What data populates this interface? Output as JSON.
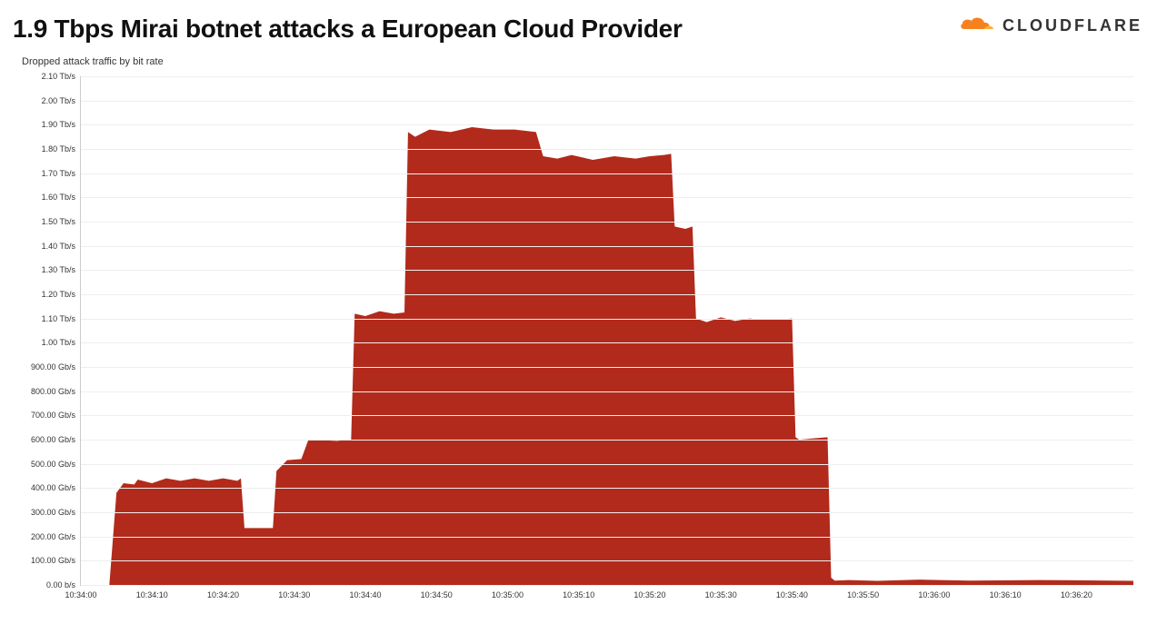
{
  "header": {
    "title": "1.9 Tbps Mirai botnet attacks a European Cloud Provider",
    "logo_word": "CLOUDFLARE",
    "logo_color": "#f6821f"
  },
  "chart": {
    "type": "area",
    "subtitle": "Dropped attack traffic by bit rate",
    "background_color": "#ffffff",
    "grid_color": "#eeeeee",
    "axis_color": "#cccccc",
    "text_color": "#333333",
    "subtitle_fontsize": 11,
    "tick_fontsize": 9,
    "title_fontsize": 28,
    "title_fontweight": 800,
    "series": [
      {
        "name": "primary",
        "fill_color": "#b22a1b",
        "stroke_color": "#8f1f14",
        "stroke_width": 0,
        "fill_opacity": 1.0,
        "points": [
          {
            "x": 0,
            "y": 0
          },
          {
            "x": 4,
            "y": 0
          },
          {
            "x": 5,
            "y": 380
          },
          {
            "x": 6,
            "y": 420
          },
          {
            "x": 7.5,
            "y": 415
          },
          {
            "x": 8,
            "y": 435
          },
          {
            "x": 10,
            "y": 420
          },
          {
            "x": 12,
            "y": 440
          },
          {
            "x": 14,
            "y": 430
          },
          {
            "x": 16,
            "y": 440
          },
          {
            "x": 18,
            "y": 430
          },
          {
            "x": 20,
            "y": 440
          },
          {
            "x": 22,
            "y": 430
          },
          {
            "x": 22.5,
            "y": 440
          },
          {
            "x": 23,
            "y": 235
          },
          {
            "x": 27,
            "y": 235
          },
          {
            "x": 27.5,
            "y": 470
          },
          {
            "x": 29,
            "y": 515
          },
          {
            "x": 31,
            "y": 520
          },
          {
            "x": 32,
            "y": 600
          },
          {
            "x": 36,
            "y": 595
          },
          {
            "x": 38,
            "y": 600
          },
          {
            "x": 38.5,
            "y": 1120
          },
          {
            "x": 40,
            "y": 1110
          },
          {
            "x": 42,
            "y": 1130
          },
          {
            "x": 44,
            "y": 1120
          },
          {
            "x": 45.5,
            "y": 1125
          },
          {
            "x": 46,
            "y": 1870
          },
          {
            "x": 47,
            "y": 1850
          },
          {
            "x": 49,
            "y": 1880
          },
          {
            "x": 52,
            "y": 1870
          },
          {
            "x": 55,
            "y": 1890
          },
          {
            "x": 58,
            "y": 1880
          },
          {
            "x": 61,
            "y": 1880
          },
          {
            "x": 64,
            "y": 1870
          },
          {
            "x": 65,
            "y": 1770
          },
          {
            "x": 67,
            "y": 1760
          },
          {
            "x": 69,
            "y": 1775
          },
          {
            "x": 72,
            "y": 1755
          },
          {
            "x": 75,
            "y": 1770
          },
          {
            "x": 78,
            "y": 1760
          },
          {
            "x": 80,
            "y": 1770
          },
          {
            "x": 82,
            "y": 1775
          },
          {
            "x": 83,
            "y": 1780
          },
          {
            "x": 83.5,
            "y": 1480
          },
          {
            "x": 85,
            "y": 1470
          },
          {
            "x": 86,
            "y": 1480
          },
          {
            "x": 86.5,
            "y": 1100
          },
          {
            "x": 88,
            "y": 1085
          },
          {
            "x": 90,
            "y": 1105
          },
          {
            "x": 92,
            "y": 1090
          },
          {
            "x": 94,
            "y": 1100
          },
          {
            "x": 96,
            "y": 1095
          },
          {
            "x": 98,
            "y": 1095
          },
          {
            "x": 100,
            "y": 1100
          },
          {
            "x": 100.5,
            "y": 610
          },
          {
            "x": 101,
            "y": 600
          },
          {
            "x": 103,
            "y": 605
          },
          {
            "x": 105,
            "y": 610
          },
          {
            "x": 105.5,
            "y": 30
          },
          {
            "x": 106,
            "y": 18
          },
          {
            "x": 108,
            "y": 20
          },
          {
            "x": 112,
            "y": 17
          },
          {
            "x": 118,
            "y": 22
          },
          {
            "x": 125,
            "y": 18
          },
          {
            "x": 135,
            "y": 20
          },
          {
            "x": 140,
            "y": 19
          },
          {
            "x": 148,
            "y": 17
          }
        ]
      },
      {
        "name": "secondary",
        "fill_color": "#f6b21b",
        "stroke_color": "#d59400",
        "stroke_width": 0,
        "fill_opacity": 1.0,
        "points": [
          {
            "x": 105,
            "y": 0
          },
          {
            "x": 106,
            "y": 8
          },
          {
            "x": 110,
            "y": 10
          },
          {
            "x": 116,
            "y": 9
          },
          {
            "x": 122,
            "y": 12
          },
          {
            "x": 130,
            "y": 8
          },
          {
            "x": 138,
            "y": 10
          },
          {
            "x": 148,
            "y": 8
          }
        ]
      }
    ],
    "y_axis": {
      "min": 0,
      "max": 2100,
      "ticks": [
        {
          "value": 0,
          "label": "0.00 b/s"
        },
        {
          "value": 100,
          "label": "100.00 Gb/s"
        },
        {
          "value": 200,
          "label": "200.00 Gb/s"
        },
        {
          "value": 300,
          "label": "300.00 Gb/s"
        },
        {
          "value": 400,
          "label": "400.00 Gb/s"
        },
        {
          "value": 500,
          "label": "500.00 Gb/s"
        },
        {
          "value": 600,
          "label": "600.00 Gb/s"
        },
        {
          "value": 700,
          "label": "700.00 Gb/s"
        },
        {
          "value": 800,
          "label": "800.00 Gb/s"
        },
        {
          "value": 900,
          "label": "900.00 Gb/s"
        },
        {
          "value": 1000,
          "label": "1.00 Tb/s"
        },
        {
          "value": 1100,
          "label": "1.10 Tb/s"
        },
        {
          "value": 1200,
          "label": "1.20 Tb/s"
        },
        {
          "value": 1300,
          "label": "1.30 Tb/s"
        },
        {
          "value": 1400,
          "label": "1.40 Tb/s"
        },
        {
          "value": 1500,
          "label": "1.50 Tb/s"
        },
        {
          "value": 1600,
          "label": "1.60 Tb/s"
        },
        {
          "value": 1700,
          "label": "1.70 Tb/s"
        },
        {
          "value": 1800,
          "label": "1.80 Tb/s"
        },
        {
          "value": 1900,
          "label": "1.90 Tb/s"
        },
        {
          "value": 2000,
          "label": "2.00 Tb/s"
        },
        {
          "value": 2100,
          "label": "2.10 Tb/s"
        }
      ]
    },
    "x_axis": {
      "min": 0,
      "max": 148,
      "ticks": [
        {
          "value": 0,
          "label": "10:34:00"
        },
        {
          "value": 10,
          "label": "10:34:10"
        },
        {
          "value": 20,
          "label": "10:34:20"
        },
        {
          "value": 30,
          "label": "10:34:30"
        },
        {
          "value": 40,
          "label": "10:34:40"
        },
        {
          "value": 50,
          "label": "10:34:50"
        },
        {
          "value": 60,
          "label": "10:35:00"
        },
        {
          "value": 70,
          "label": "10:35:10"
        },
        {
          "value": 80,
          "label": "10:35:20"
        },
        {
          "value": 90,
          "label": "10:35:30"
        },
        {
          "value": 100,
          "label": "10:35:40"
        },
        {
          "value": 110,
          "label": "10:35:50"
        },
        {
          "value": 120,
          "label": "10:36:00"
        },
        {
          "value": 130,
          "label": "10:36:10"
        },
        {
          "value": 140,
          "label": "10:36:20"
        }
      ]
    }
  }
}
